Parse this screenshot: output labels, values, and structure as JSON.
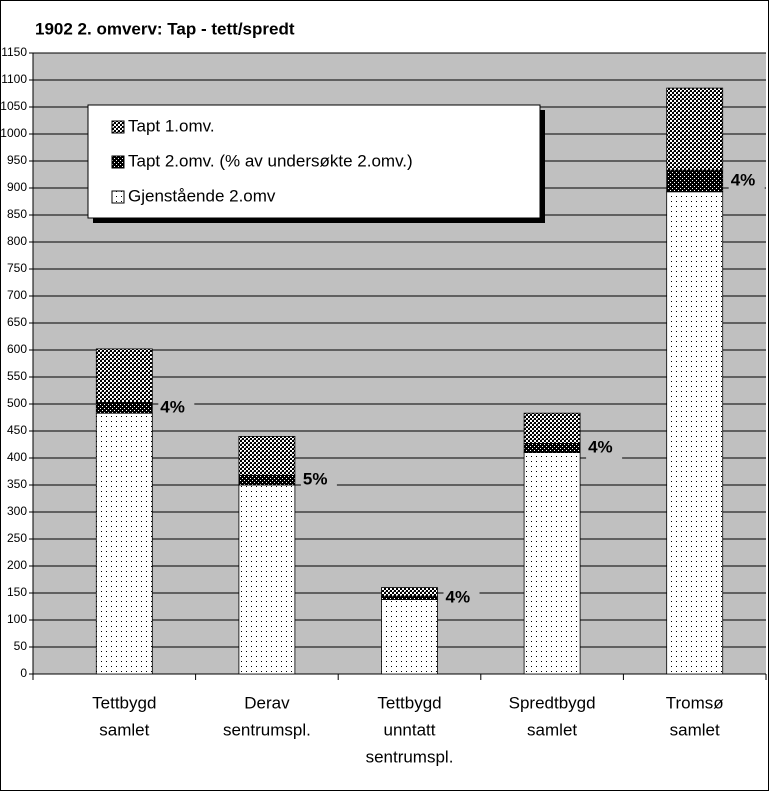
{
  "chart_data": {
    "type": "stacked-bar",
    "title": "1902 2. omverv: Tap - tett/spredt",
    "categories": [
      [
        "Tettbygd",
        "samlet"
      ],
      [
        "Derav",
        "sentrumspl."
      ],
      [
        "Tettbygd",
        "unntatt",
        "sentrumspl."
      ],
      [
        "Spredtbygd",
        "samlet"
      ],
      [
        "Tromsø",
        "samlet"
      ]
    ],
    "series": [
      {
        "name": "Gjenstående 2.omv",
        "color": "#ffffff",
        "pattern": "dots",
        "values": [
          483,
          350,
          138,
          410,
          893
        ]
      },
      {
        "name": "Tapt 2.omv. (% av undersøkte 2.omv.)",
        "color": "#000000",
        "pattern": "dense-check",
        "values": [
          20,
          18,
          6,
          17,
          40
        ]
      },
      {
        "name": "Tapt 1.omv.",
        "color": "#404040",
        "pattern": "check",
        "values": [
          99,
          72,
          16,
          56,
          152
        ]
      }
    ],
    "annotations": [
      "4%",
      "5%",
      "4%",
      "4%",
      "4%"
    ],
    "ylim": [
      0,
      1150
    ],
    "yticks": [
      0,
      50,
      100,
      150,
      200,
      250,
      300,
      350,
      400,
      450,
      500,
      550,
      600,
      650,
      700,
      750,
      800,
      850,
      900,
      950,
      1000,
      1050,
      1100,
      1150
    ],
    "grid": true,
    "legend": "top-left"
  }
}
